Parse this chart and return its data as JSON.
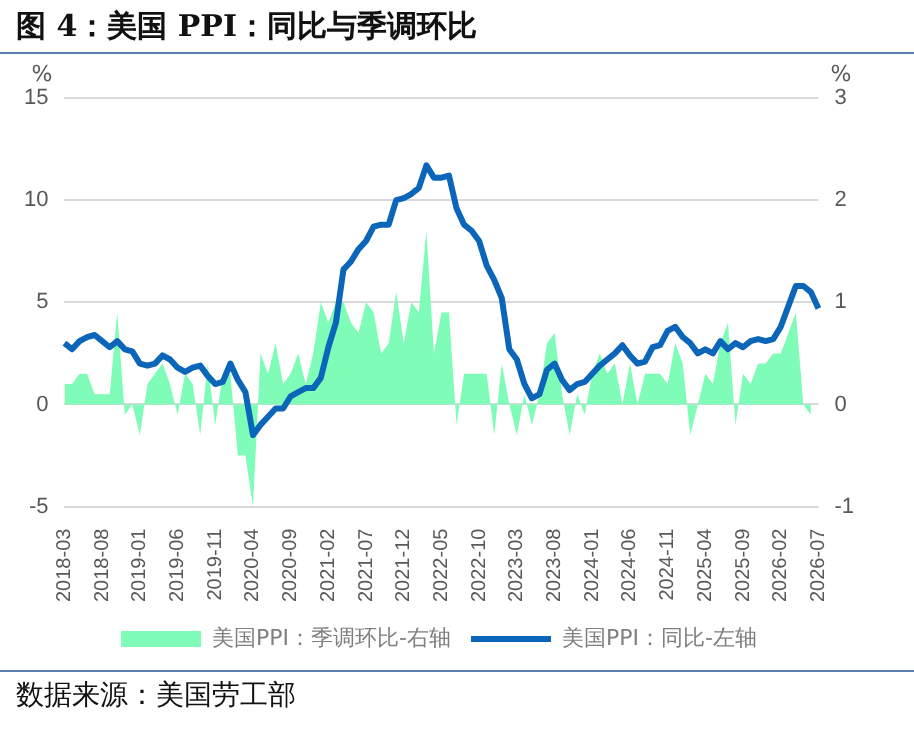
{
  "chart_data": {
    "type": "line",
    "title": "图 4：美国 PPI：同比与季调环比",
    "ylabel": "%",
    "y2label": "%",
    "annotations": [
      "数据来源：美国劳工部"
    ],
    "categories": [
      "2018-03",
      null,
      null,
      null,
      null,
      "2018-08",
      null,
      null,
      null,
      null,
      "2019-01",
      null,
      null,
      null,
      null,
      "2019-06",
      null,
      null,
      null,
      null,
      "2019-11",
      null,
      null,
      null,
      null,
      "2020-04",
      null,
      null,
      null,
      null,
      "2020-09",
      null,
      null,
      null,
      null,
      "2021-02",
      null,
      null,
      null,
      null,
      "2021-07",
      null,
      null,
      null,
      null,
      "2021-12",
      null,
      null,
      null,
      null,
      "2022-05",
      null,
      null,
      null,
      null,
      "2022-10",
      null,
      null,
      null,
      null,
      "2023-03",
      null,
      null,
      null,
      null,
      "2023-08",
      null,
      null,
      null,
      null,
      "2024-01",
      null,
      null,
      null,
      null,
      "2024-06",
      null,
      null,
      null,
      null,
      "2024-11",
      null,
      null,
      null,
      null,
      "2025-04",
      null,
      null,
      null,
      null,
      "2025-09",
      null,
      null,
      null,
      null,
      "2026-02",
      null,
      null,
      null,
      null,
      "2026-07"
    ],
    "series": [
      {
        "name": "美国PPI：季调环比-右轴",
        "type": "area",
        "axis": "y2",
        "color": "#7ffcb8",
        "values": [
          0.2,
          0.2,
          0.3,
          0.3,
          0.1,
          0.1,
          0.1,
          0.9,
          -0.1,
          0.0,
          -0.3,
          0.2,
          0.3,
          0.4,
          0.2,
          -0.1,
          0.3,
          0.2,
          -0.3,
          0.4,
          -0.2,
          0.3,
          0.3,
          -0.5,
          -0.5,
          -1.0,
          0.5,
          0.3,
          0.6,
          0.2,
          0.3,
          0.5,
          0.2,
          0.5,
          1.0,
          0.8,
          1.0,
          1.0,
          0.8,
          0.7,
          1.0,
          0.9,
          0.5,
          0.6,
          1.1,
          0.6,
          1.0,
          0.9,
          1.7,
          0.5,
          0.9,
          0.9,
          -0.2,
          0.3,
          0.3,
          0.3,
          0.3,
          -0.3,
          0.4,
          0.0,
          -0.3,
          0.1,
          -0.2,
          0.1,
          0.6,
          0.7,
          0.1,
          -0.3,
          0.1,
          -0.1,
          0.3,
          0.5,
          0.3,
          0.4,
          0.0,
          0.4,
          0.0,
          0.3,
          0.3,
          0.3,
          0.2,
          0.6,
          0.4,
          -0.3,
          0.0,
          0.3,
          0.2,
          0.6,
          0.8,
          -0.2,
          0.3,
          0.2,
          0.4,
          0.4,
          0.5,
          0.5,
          0.7,
          0.9,
          0.0,
          -0.1,
          null
        ]
      },
      {
        "name": "美国PPI：同比-左轴",
        "color": "#0b65b8",
        "values": [
          3.0,
          2.7,
          3.1,
          3.3,
          3.4,
          3.1,
          2.8,
          3.1,
          2.7,
          2.6,
          2.0,
          1.9,
          2.0,
          2.4,
          2.2,
          1.8,
          1.6,
          1.8,
          1.9,
          1.4,
          1.0,
          1.1,
          2.0,
          1.2,
          0.6,
          -1.5,
          -1.0,
          -0.6,
          -0.2,
          -0.2,
          0.4,
          0.6,
          0.8,
          0.8,
          1.3,
          2.8,
          4.0,
          6.6,
          7.0,
          7.6,
          8.0,
          8.7,
          8.8,
          8.8,
          10.0,
          10.1,
          10.3,
          10.6,
          11.7,
          11.1,
          11.1,
          11.2,
          9.6,
          8.8,
          8.5,
          8.0,
          6.8,
          6.1,
          5.2,
          2.7,
          2.2,
          1.0,
          0.3,
          0.5,
          1.7,
          2.0,
          1.2,
          0.7,
          1.0,
          1.1,
          1.5,
          1.9,
          2.2,
          2.5,
          2.9,
          2.4,
          2.0,
          2.1,
          2.8,
          2.9,
          3.6,
          3.8,
          3.3,
          3.0,
          2.5,
          2.7,
          2.5,
          3.1,
          2.7,
          3.0,
          2.8,
          3.1,
          3.2,
          3.1,
          3.2,
          3.8,
          4.8,
          5.8,
          5.8,
          5.5,
          4.7
        ]
      }
    ],
    "ylim": [
      -5,
      15
    ],
    "yticks": [
      -5,
      0,
      5,
      10,
      15
    ],
    "y2lim": [
      -1,
      3
    ],
    "y2ticks": [
      -1,
      0,
      1,
      2,
      3
    ],
    "grid": "y",
    "legend": "bottom",
    "marker": "none"
  }
}
